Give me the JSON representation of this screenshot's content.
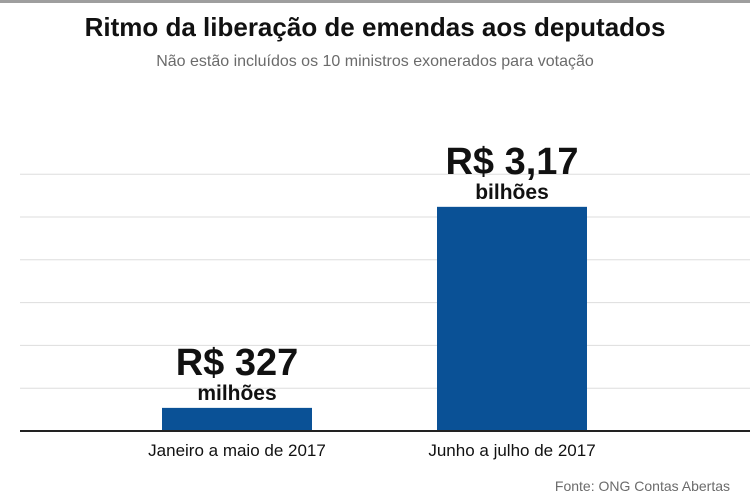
{
  "title": "Ritmo da liberação de emendas aos deputados",
  "subtitle": "Não estão incluídos os 10 ministros exonerados para votação",
  "source": "Fonte: ONG Contas Abertas",
  "colors": {
    "bar": "#0a5196",
    "grid": "#dddddd",
    "axis": "#222222",
    "text": "#111111"
  },
  "chart_data": {
    "type": "bar",
    "categories": [
      "Janeiro a maio de 2017",
      "Junho a julho de 2017"
    ],
    "values": [
      327,
      3170
    ],
    "unit": "R$ milhões",
    "data_labels": [
      {
        "value": "R$ 327",
        "unit": "milhões"
      },
      {
        "value": "R$ 3,17",
        "unit": "bilhões"
      }
    ],
    "ylim": [
      0,
      4200
    ],
    "grid": true,
    "legend": "none"
  }
}
